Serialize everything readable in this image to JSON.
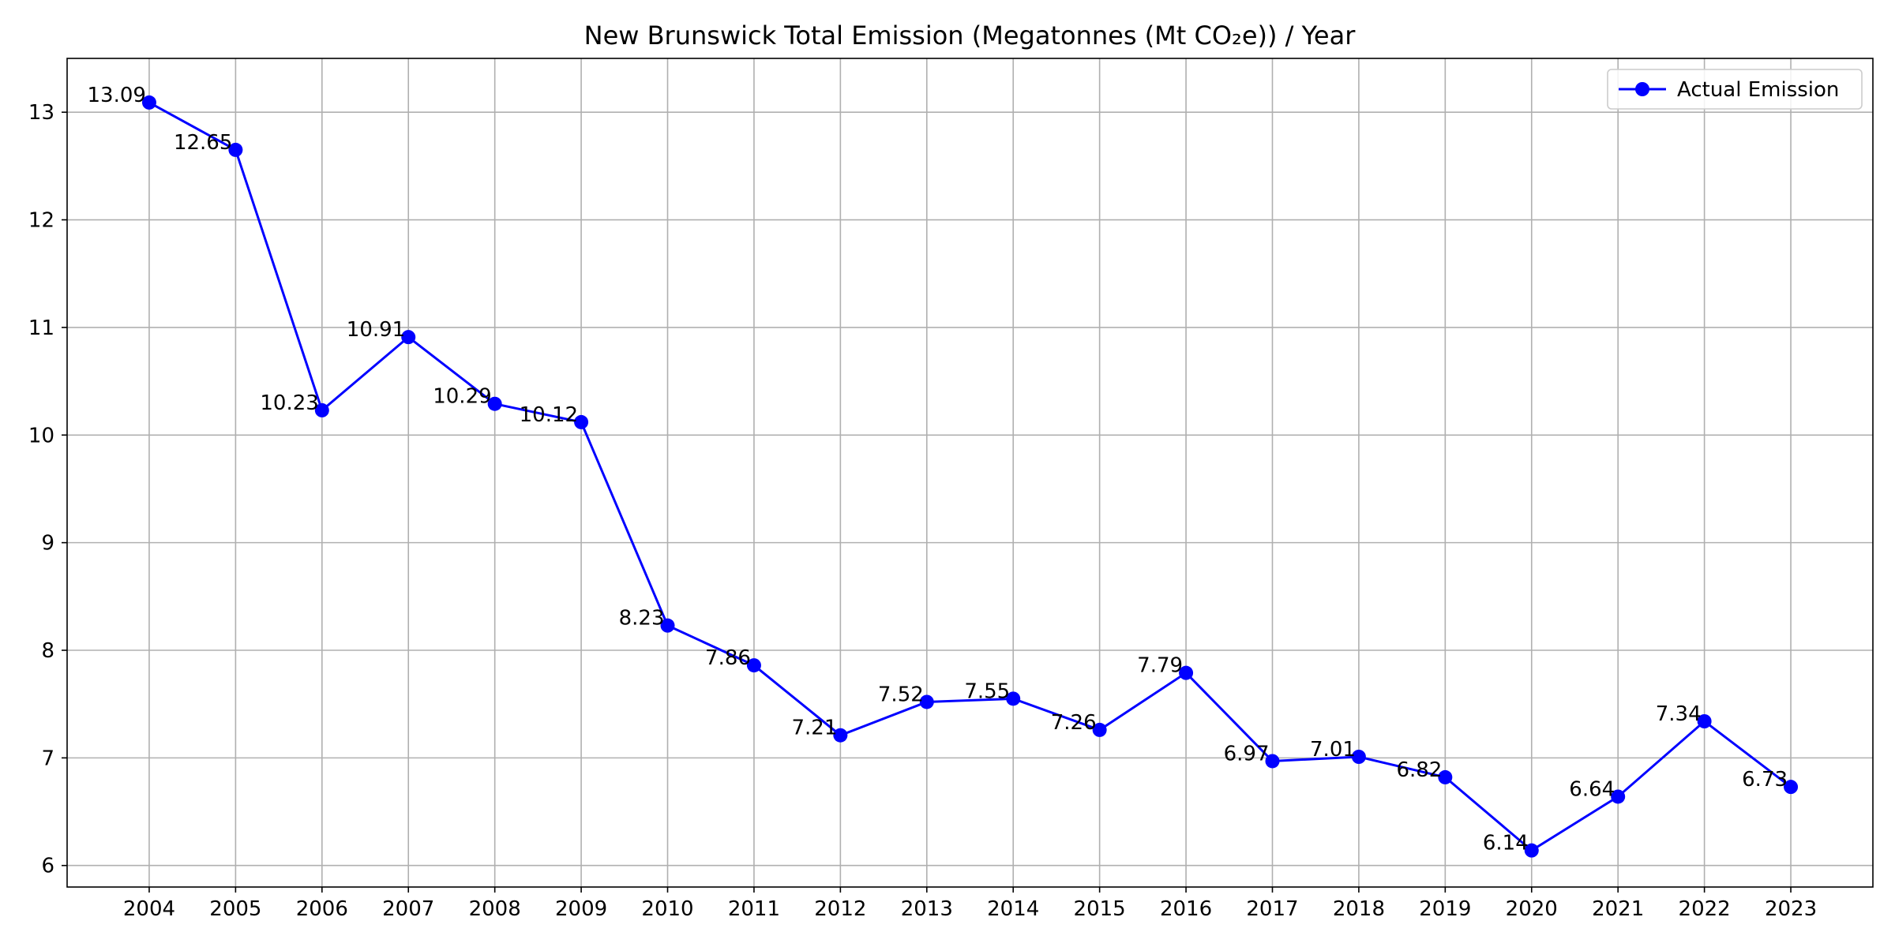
{
  "chart_data": {
    "type": "line",
    "title": "New Brunswick Total Emission (Megatonnes (Mt CO₂e)) / Year",
    "xlabel": "",
    "ylabel": "",
    "categories": [
      "2004",
      "2005",
      "2006",
      "2007",
      "2008",
      "2009",
      "2010",
      "2011",
      "2012",
      "2013",
      "2014",
      "2015",
      "2016",
      "2017",
      "2018",
      "2019",
      "2020",
      "2021",
      "2022",
      "2023"
    ],
    "y_ticks": [
      6,
      7,
      8,
      9,
      10,
      11,
      12,
      13
    ],
    "ylim": [
      5.8,
      13.5
    ],
    "grid": true,
    "legend_position": "top-right",
    "series": [
      {
        "name": "Actual Emission",
        "color": "#0000ff",
        "marker": "circle",
        "values": [
          13.09,
          12.65,
          10.23,
          10.91,
          10.29,
          10.12,
          8.23,
          7.86,
          7.21,
          7.52,
          7.55,
          7.26,
          7.79,
          6.97,
          7.01,
          6.82,
          6.14,
          6.64,
          7.34,
          6.73
        ],
        "labels": [
          "13.09",
          "12.65",
          "10.23",
          "10.91",
          "10.29",
          "10.12",
          "8.23",
          "7.86",
          "7.21",
          "7.52",
          "7.55",
          "7.26",
          "7.79",
          "6.97",
          "7.01",
          "6.82",
          "6.14",
          "6.64",
          "7.34",
          "6.73"
        ]
      }
    ]
  }
}
